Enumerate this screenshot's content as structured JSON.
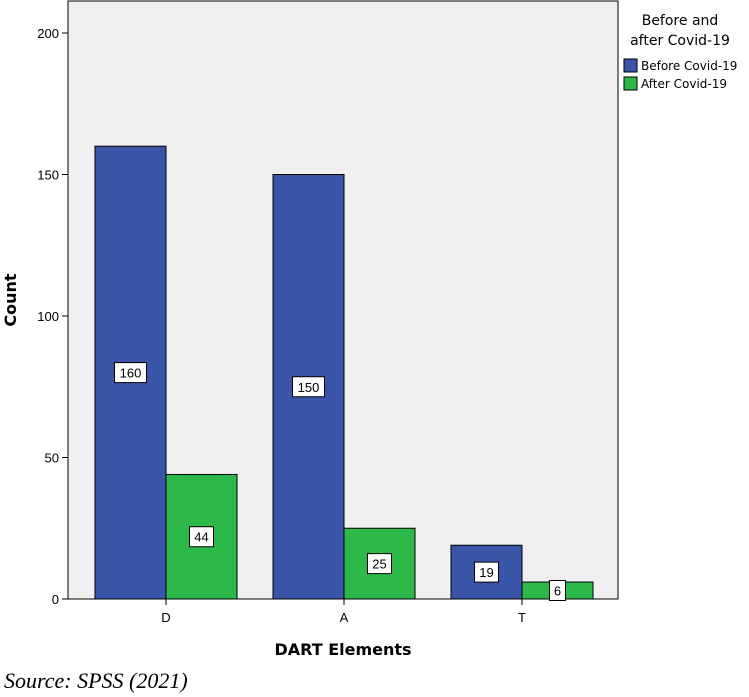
{
  "chart_data": {
    "type": "bar",
    "categories": [
      "D",
      "A",
      "T"
    ],
    "series": [
      {
        "name": "Before Covid-19",
        "values": [
          160,
          150,
          19
        ],
        "color": "#3A54A8"
      },
      {
        "name": "After Covid-19",
        "values": [
          44,
          25,
          6
        ],
        "color": "#2DB84A"
      }
    ],
    "data_labels": [
      [
        "160",
        "150",
        "19"
      ],
      [
        "44",
        "25",
        "6"
      ]
    ],
    "xlabel": "DART Elements",
    "ylabel": "Count",
    "ylim": [
      0,
      200
    ],
    "yticks": [
      0,
      50,
      100,
      150,
      200
    ],
    "ytick_labels": [
      "0",
      "50",
      "100",
      "150",
      "200"
    ],
    "grid": false,
    "plot_background": "#F0F0F0",
    "legend": {
      "title_lines": [
        "Before and",
        "after Covid-19"
      ],
      "placement": "right"
    }
  },
  "source_note": "Source: SPSS (2021)"
}
